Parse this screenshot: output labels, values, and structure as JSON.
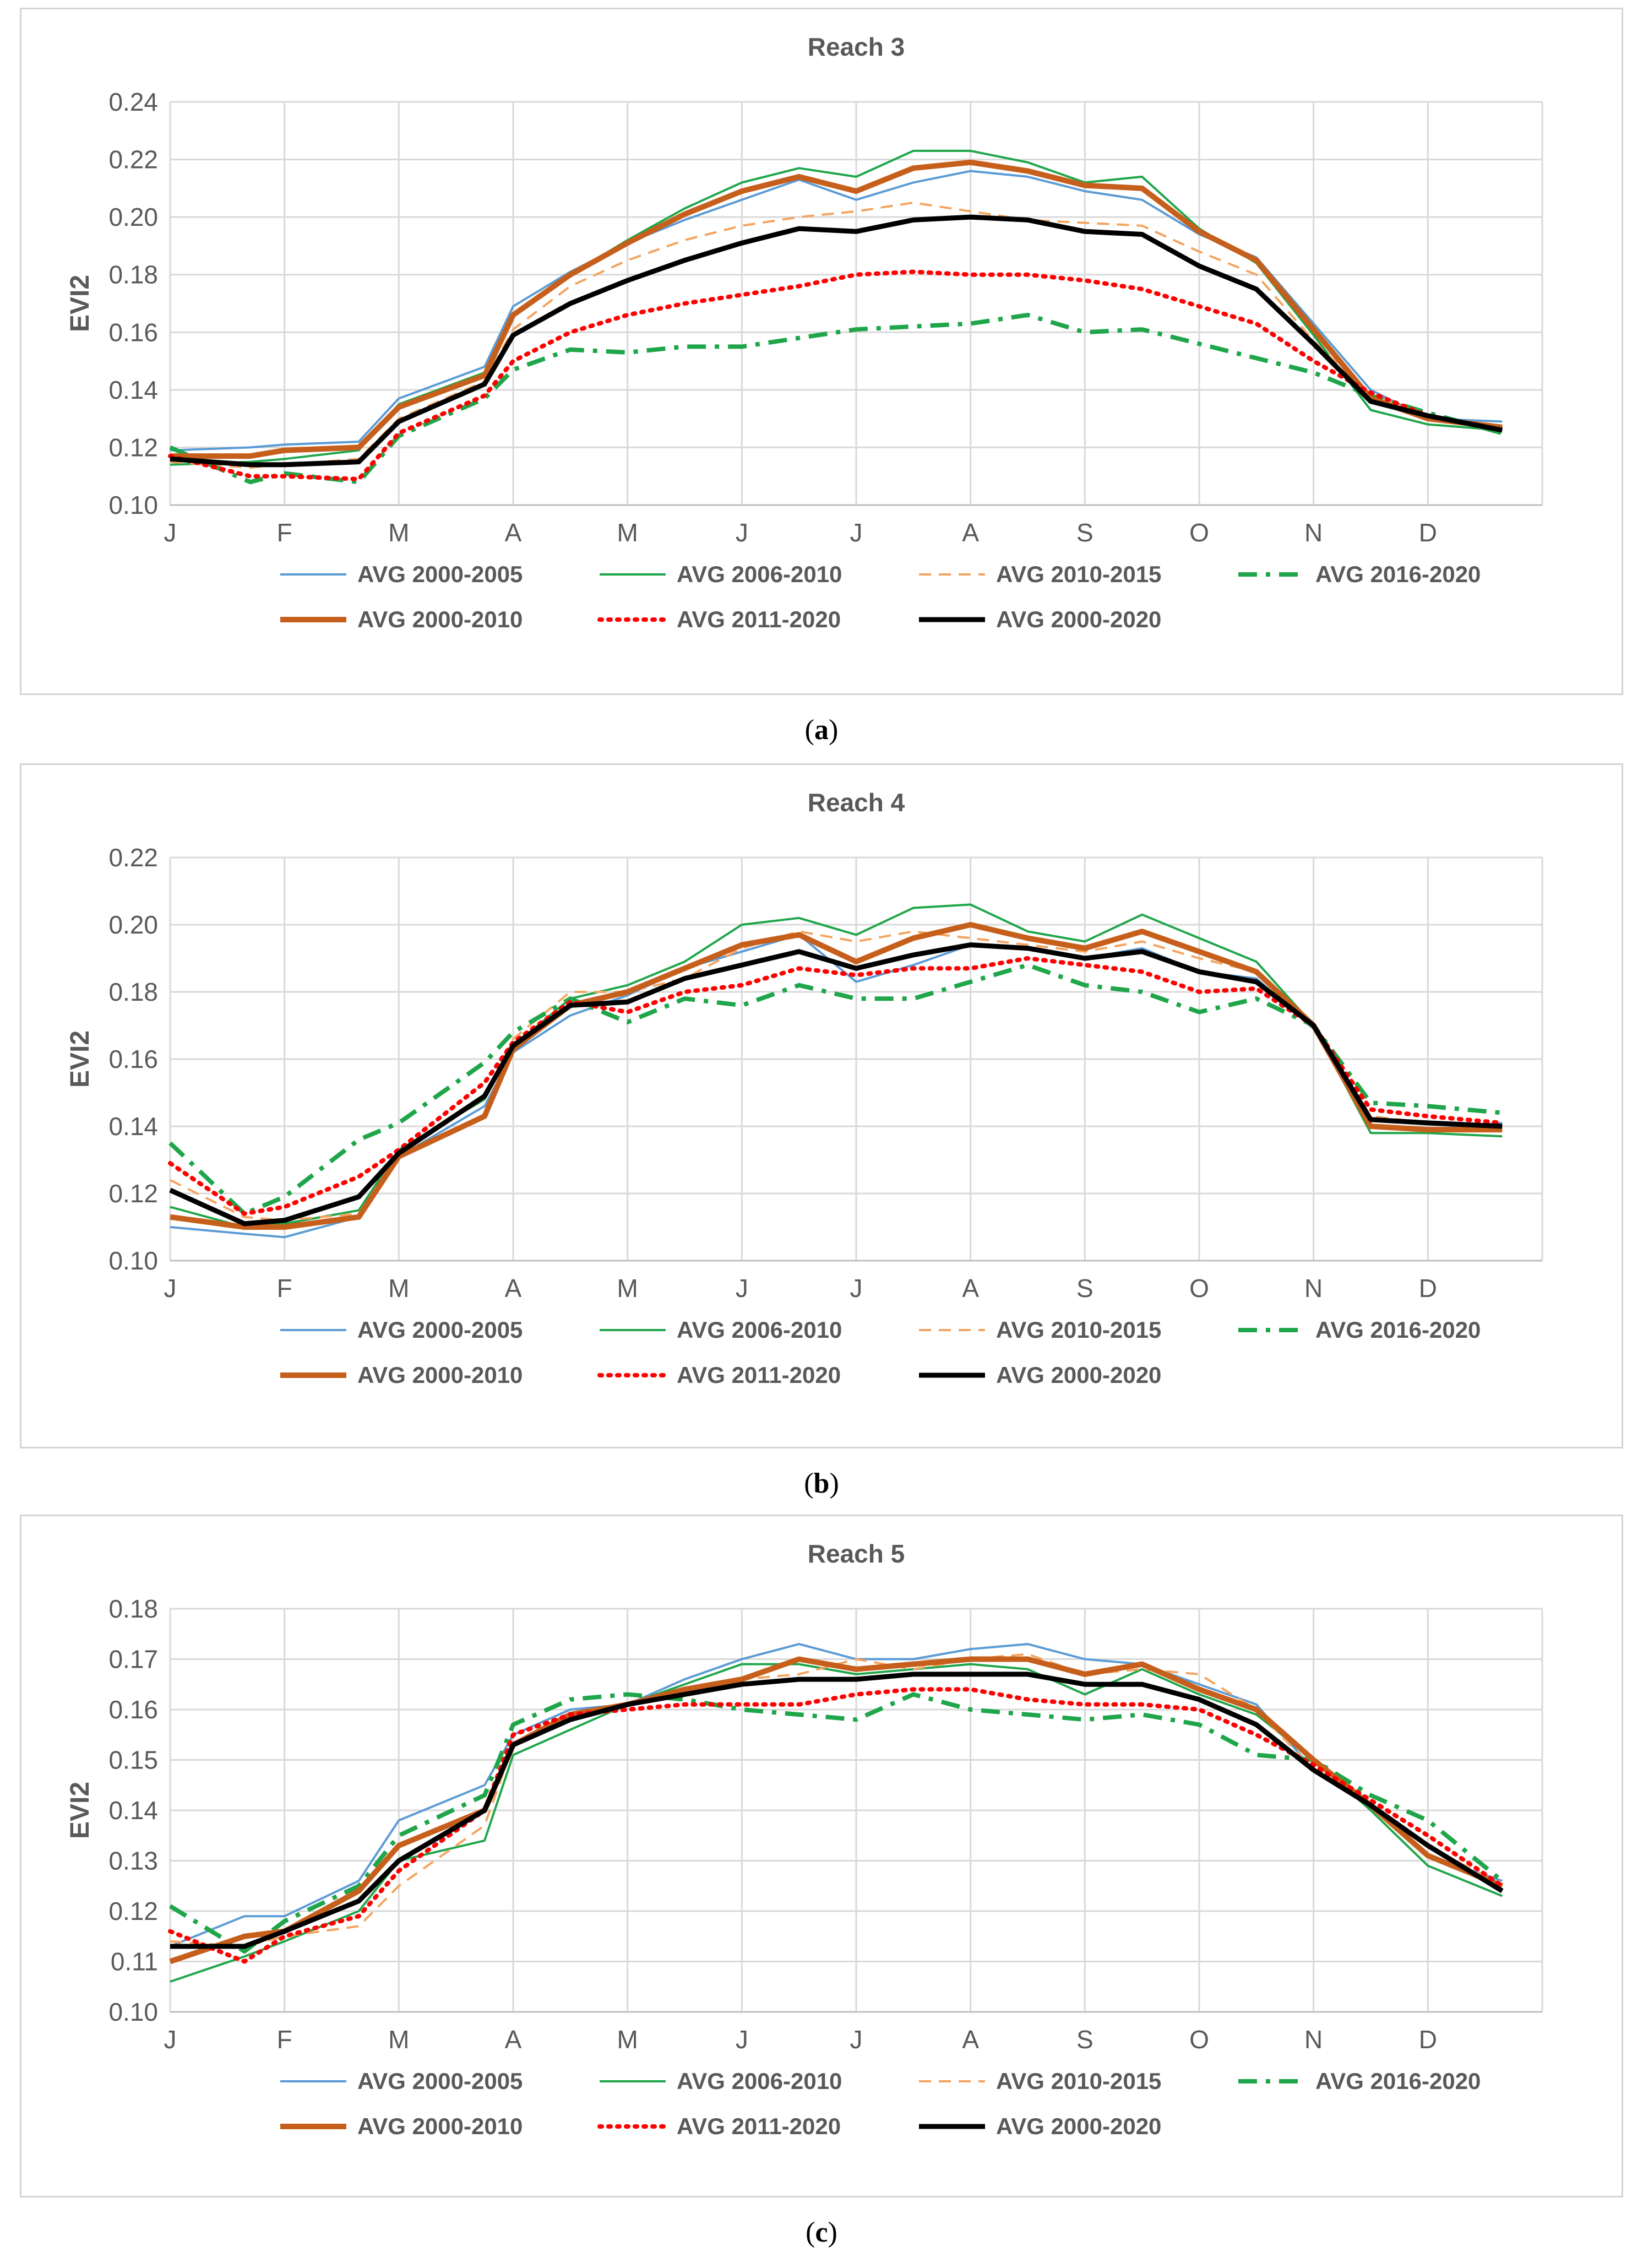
{
  "series_styles": [
    {
      "name": "AVG 2000-2005",
      "color": "#5b9bd5",
      "width": 4,
      "dash": "",
      "legend_row": 0,
      "legend_col": 0
    },
    {
      "name": "AVG 2006-2010",
      "color": "#1fa64a",
      "width": 4,
      "dash": "",
      "legend_row": 0,
      "legend_col": 1
    },
    {
      "name": "AVG 2010-2015",
      "color": "#f4a460",
      "width": 4,
      "dash": "22 14",
      "legend_row": 0,
      "legend_col": 2
    },
    {
      "name": "AVG 2016-2020",
      "color": "#1fa64a",
      "width": 8,
      "dash": "34 16 8 16",
      "legend_row": 0,
      "legend_col": 3
    },
    {
      "name": "AVG 2000-2010",
      "color": "#c65f1b",
      "width": 10,
      "dash": "",
      "legend_row": 1,
      "legend_col": 0
    },
    {
      "name": "AVG 2011-2020",
      "color": "#ff0000",
      "width": 8,
      "dash": "4 12",
      "legend_row": 1,
      "legend_col": 1
    },
    {
      "name": "AVG 2000-2020",
      "color": "#000000",
      "width": 9,
      "dash": "",
      "legend_row": 1,
      "legend_col": 2
    }
  ],
  "chart_data": [
    {
      "type": "line",
      "panel_label": "a",
      "title": "Reach 3",
      "ylabel": "EVI2",
      "xlabel": "",
      "x_tick_labels": [
        "J",
        "F",
        "M",
        "A",
        "M",
        "J",
        "J",
        "A",
        "S",
        "O",
        "N",
        "D"
      ],
      "x_points_per_month": 2,
      "x": [
        0,
        0.7,
        1,
        1.65,
        2,
        2.75,
        3,
        3.5,
        4,
        4.5,
        5,
        5.5,
        6,
        6.5,
        7,
        7.5,
        8,
        8.5,
        9,
        9.5,
        10,
        10.5,
        11,
        11.65
      ],
      "ylim": [
        0.1,
        0.24
      ],
      "ytick_step": 0.02,
      "grid": true,
      "legend_position": "bottom",
      "series": [
        {
          "name": "AVG 2000-2005",
          "values": [
            0.119,
            0.12,
            0.121,
            0.122,
            0.137,
            0.148,
            0.169,
            0.181,
            0.191,
            0.199,
            0.206,
            0.213,
            0.206,
            0.212,
            0.216,
            0.214,
            0.209,
            0.206,
            0.194,
            0.186,
            0.163,
            0.14,
            0.13,
            0.129
          ]
        },
        {
          "name": "AVG 2006-2010",
          "values": [
            0.114,
            0.115,
            0.116,
            0.119,
            0.135,
            0.146,
            0.166,
            0.18,
            0.192,
            0.203,
            0.212,
            0.217,
            0.214,
            0.223,
            0.223,
            0.219,
            0.212,
            0.214,
            0.196,
            0.184,
            0.159,
            0.133,
            0.128,
            0.126
          ]
        },
        {
          "name": "AVG 2010-2015",
          "values": [
            0.115,
            0.113,
            0.114,
            0.116,
            0.13,
            0.143,
            0.161,
            0.176,
            0.185,
            0.192,
            0.197,
            0.2,
            0.202,
            0.205,
            0.202,
            0.199,
            0.198,
            0.197,
            0.188,
            0.18,
            0.157,
            0.138,
            0.131,
            0.127
          ]
        },
        {
          "name": "AVG 2016-2020",
          "values": [
            0.12,
            0.108,
            0.111,
            0.108,
            0.124,
            0.137,
            0.147,
            0.154,
            0.153,
            0.155,
            0.155,
            0.158,
            0.161,
            0.162,
            0.163,
            0.166,
            0.16,
            0.161,
            0.156,
            0.151,
            0.146,
            0.138,
            0.132,
            0.125
          ]
        },
        {
          "name": "AVG 2000-2010",
          "values": [
            0.117,
            0.117,
            0.119,
            0.12,
            0.134,
            0.145,
            0.166,
            0.18,
            0.191,
            0.201,
            0.209,
            0.214,
            0.209,
            0.217,
            0.219,
            0.216,
            0.211,
            0.21,
            0.195,
            0.185,
            0.161,
            0.137,
            0.13,
            0.127
          ]
        },
        {
          "name": "AVG 2011-2020",
          "values": [
            0.117,
            0.11,
            0.11,
            0.109,
            0.125,
            0.138,
            0.15,
            0.16,
            0.166,
            0.17,
            0.173,
            0.176,
            0.18,
            0.181,
            0.18,
            0.18,
            0.178,
            0.175,
            0.169,
            0.163,
            0.15,
            0.139,
            0.131,
            0.126
          ]
        },
        {
          "name": "AVG 2000-2020",
          "values": [
            0.116,
            0.114,
            0.114,
            0.115,
            0.129,
            0.142,
            0.159,
            0.17,
            0.178,
            0.185,
            0.191,
            0.196,
            0.195,
            0.199,
            0.2,
            0.199,
            0.195,
            0.194,
            0.183,
            0.175,
            0.156,
            0.136,
            0.131,
            0.126
          ]
        }
      ]
    },
    {
      "type": "line",
      "panel_label": "b",
      "title": "Reach 4",
      "ylabel": "EVI2",
      "xlabel": "",
      "x_tick_labels": [
        "J",
        "F",
        "M",
        "A",
        "M",
        "J",
        "J",
        "A",
        "S",
        "O",
        "N",
        "D"
      ],
      "x_points_per_month": 2,
      "x": [
        0,
        0.65,
        1,
        1.65,
        2,
        2.75,
        3,
        3.5,
        4,
        4.5,
        5,
        5.5,
        6,
        6.5,
        7,
        7.5,
        8,
        8.5,
        9,
        9.5,
        10,
        10.5,
        11,
        11.65
      ],
      "ylim": [
        0.1,
        0.22
      ],
      "ytick_step": 0.02,
      "grid": true,
      "legend_position": "bottom",
      "series": [
        {
          "name": "AVG 2000-2005",
          "values": [
            0.11,
            0.108,
            0.107,
            0.113,
            0.131,
            0.146,
            0.162,
            0.173,
            0.179,
            0.187,
            0.192,
            0.197,
            0.183,
            0.188,
            0.194,
            0.193,
            0.19,
            0.193,
            0.186,
            0.184,
            0.169,
            0.14,
            0.139,
            0.141
          ]
        },
        {
          "name": "AVG 2006-2010",
          "values": [
            0.116,
            0.11,
            0.111,
            0.115,
            0.133,
            0.148,
            0.164,
            0.178,
            0.182,
            0.189,
            0.2,
            0.202,
            0.197,
            0.205,
            0.206,
            0.198,
            0.195,
            0.203,
            0.196,
            0.189,
            0.17,
            0.138,
            0.138,
            0.137
          ]
        },
        {
          "name": "AVG 2010-2015",
          "values": [
            0.124,
            0.113,
            0.112,
            0.114,
            0.132,
            0.149,
            0.166,
            0.18,
            0.18,
            0.184,
            0.193,
            0.198,
            0.195,
            0.198,
            0.196,
            0.194,
            0.192,
            0.195,
            0.19,
            0.186,
            0.17,
            0.143,
            0.141,
            0.14
          ]
        },
        {
          "name": "AVG 2016-2020",
          "values": [
            0.135,
            0.114,
            0.119,
            0.136,
            0.141,
            0.159,
            0.168,
            0.178,
            0.171,
            0.178,
            0.176,
            0.182,
            0.178,
            0.178,
            0.183,
            0.188,
            0.182,
            0.18,
            0.174,
            0.178,
            0.17,
            0.147,
            0.146,
            0.144
          ]
        },
        {
          "name": "AVG 2000-2010",
          "values": [
            0.113,
            0.11,
            0.11,
            0.113,
            0.131,
            0.143,
            0.163,
            0.176,
            0.18,
            0.187,
            0.194,
            0.197,
            0.189,
            0.196,
            0.2,
            0.196,
            0.193,
            0.198,
            0.192,
            0.186,
            0.17,
            0.14,
            0.139,
            0.139
          ]
        },
        {
          "name": "AVG 2011-2020",
          "values": [
            0.129,
            0.114,
            0.116,
            0.125,
            0.133,
            0.153,
            0.165,
            0.177,
            0.174,
            0.18,
            0.182,
            0.187,
            0.185,
            0.187,
            0.187,
            0.19,
            0.188,
            0.186,
            0.18,
            0.181,
            0.17,
            0.145,
            0.143,
            0.141
          ]
        },
        {
          "name": "AVG 2000-2020",
          "values": [
            0.121,
            0.111,
            0.112,
            0.119,
            0.132,
            0.149,
            0.164,
            0.176,
            0.177,
            0.184,
            0.188,
            0.192,
            0.187,
            0.191,
            0.194,
            0.193,
            0.19,
            0.192,
            0.186,
            0.183,
            0.17,
            0.142,
            0.141,
            0.14
          ]
        }
      ]
    },
    {
      "type": "line",
      "panel_label": "c",
      "title": "Reach 5",
      "ylabel": "EVI2",
      "xlabel": "",
      "x_tick_labels": [
        "J",
        "F",
        "M",
        "A",
        "M",
        "J",
        "J",
        "A",
        "S",
        "O",
        "N",
        "D"
      ],
      "x_points_per_month": 2,
      "x": [
        0,
        0.65,
        1,
        1.65,
        2,
        2.75,
        3,
        3.5,
        4,
        4.5,
        5,
        5.5,
        6,
        6.5,
        7,
        7.5,
        8,
        8.5,
        9,
        9.5,
        10,
        10.5,
        11,
        11.65
      ],
      "ylim": [
        0.1,
        0.18
      ],
      "ytick_step": 0.01,
      "grid": true,
      "legend_position": "bottom",
      "series": [
        {
          "name": "AVG 2000-2005",
          "values": [
            0.113,
            0.119,
            0.119,
            0.126,
            0.138,
            0.145,
            0.155,
            0.16,
            0.161,
            0.166,
            0.17,
            0.173,
            0.17,
            0.17,
            0.172,
            0.173,
            0.17,
            0.169,
            0.165,
            0.161,
            0.148,
            0.141,
            0.131,
            0.126
          ]
        },
        {
          "name": "AVG 2006-2010",
          "values": [
            0.106,
            0.111,
            0.114,
            0.12,
            0.13,
            0.134,
            0.151,
            0.156,
            0.161,
            0.165,
            0.169,
            0.169,
            0.167,
            0.168,
            0.169,
            0.168,
            0.163,
            0.168,
            0.163,
            0.159,
            0.15,
            0.14,
            0.129,
            0.123
          ]
        },
        {
          "name": "AVG 2010-2015",
          "values": [
            0.114,
            0.113,
            0.115,
            0.117,
            0.125,
            0.137,
            0.153,
            0.159,
            0.161,
            0.163,
            0.166,
            0.167,
            0.17,
            0.168,
            0.17,
            0.171,
            0.167,
            0.168,
            0.167,
            0.16,
            0.148,
            0.141,
            0.133,
            0.125
          ]
        },
        {
          "name": "AVG 2016-2020",
          "values": [
            0.121,
            0.112,
            0.118,
            0.125,
            0.135,
            0.143,
            0.157,
            0.162,
            0.163,
            0.162,
            0.16,
            0.159,
            0.158,
            0.163,
            0.16,
            0.159,
            0.158,
            0.159,
            0.157,
            0.151,
            0.15,
            0.143,
            0.138,
            0.126
          ]
        },
        {
          "name": "AVG 2000-2010",
          "values": [
            0.11,
            0.115,
            0.116,
            0.124,
            0.133,
            0.14,
            0.153,
            0.159,
            0.161,
            0.164,
            0.166,
            0.17,
            0.168,
            0.169,
            0.17,
            0.17,
            0.167,
            0.169,
            0.164,
            0.16,
            0.15,
            0.141,
            0.131,
            0.125
          ]
        },
        {
          "name": "AVG 2011-2020",
          "values": [
            0.116,
            0.11,
            0.115,
            0.119,
            0.128,
            0.14,
            0.155,
            0.159,
            0.16,
            0.161,
            0.161,
            0.161,
            0.163,
            0.164,
            0.164,
            0.162,
            0.161,
            0.161,
            0.16,
            0.155,
            0.149,
            0.142,
            0.135,
            0.125
          ]
        },
        {
          "name": "AVG 2000-2020",
          "values": [
            0.113,
            0.113,
            0.116,
            0.122,
            0.13,
            0.14,
            0.153,
            0.158,
            0.161,
            0.163,
            0.165,
            0.166,
            0.166,
            0.167,
            0.167,
            0.167,
            0.165,
            0.165,
            0.162,
            0.157,
            0.148,
            0.141,
            0.133,
            0.124
          ]
        }
      ]
    }
  ]
}
